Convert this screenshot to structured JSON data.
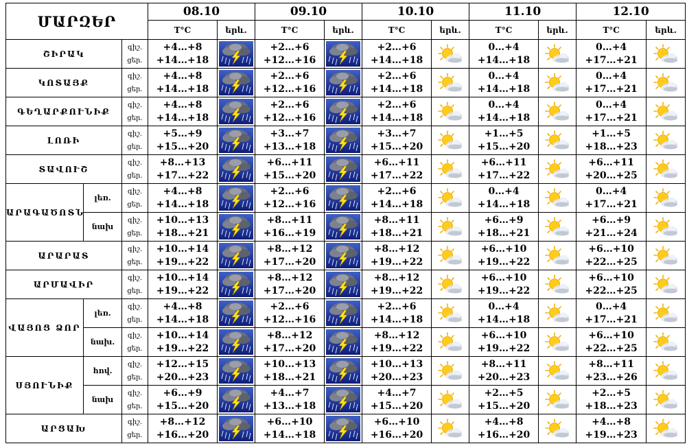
{
  "table": {
    "region_header": "ՄԱՐԶԵՐ",
    "dates": [
      "08.10",
      "09.10",
      "10.10",
      "11.10",
      "12.10"
    ],
    "temp_header": "T°C",
    "sky_header": "երև.",
    "rows": [
      {
        "region": "ՇԻՐԱԿ",
        "sub": "",
        "night_label": "գիշ.",
        "day_label": "ցեր.",
        "days": [
          {
            "night": "+4…+8",
            "day": "+14…+18",
            "icon": "storm-icon"
          },
          {
            "night": "+2…+6",
            "day": "+12…+16",
            "icon": "storm-icon"
          },
          {
            "night": "+2…+6",
            "day": "+14…+18",
            "icon": "partly-cloudy-icon"
          },
          {
            "night": "0…+4",
            "day": "+14…+18",
            "icon": "partly-cloudy-icon"
          },
          {
            "night": "0…+4",
            "day": "+17…+21",
            "icon": "partly-cloudy-icon"
          }
        ]
      },
      {
        "region": "ԿՈՏԱՅՔ",
        "sub": "",
        "night_label": "գիշ.",
        "day_label": "ցեր.",
        "days": [
          {
            "night": "+4…+8",
            "day": "+14…+18",
            "icon": "storm-icon"
          },
          {
            "night": "+2…+6",
            "day": "+12…+16",
            "icon": "storm-icon"
          },
          {
            "night": "+2…+6",
            "day": "+14…+18",
            "icon": "partly-cloudy-icon"
          },
          {
            "night": "0…+4",
            "day": "+14…+18",
            "icon": "partly-cloudy-icon"
          },
          {
            "night": "0…+4",
            "day": "+17…+21",
            "icon": "partly-cloudy-icon"
          }
        ]
      },
      {
        "region": "ԳԵՂԱՐՔՈՒՆԻՔ",
        "sub": "",
        "night_label": "գիշ.",
        "day_label": "ցեր.",
        "days": [
          {
            "night": "+4…+8",
            "day": "+14…+18",
            "icon": "storm-icon"
          },
          {
            "night": "+2…+6",
            "day": "+12…+16",
            "icon": "storm-icon"
          },
          {
            "night": "+2…+6",
            "day": "+14…+18",
            "icon": "partly-cloudy-icon"
          },
          {
            "night": "0…+4",
            "day": "+14…+18",
            "icon": "partly-cloudy-icon"
          },
          {
            "night": "0…+4",
            "day": "+17…+21",
            "icon": "partly-cloudy-icon"
          }
        ]
      },
      {
        "region": "ԼՈՌԻ",
        "sub": "",
        "night_label": "գիշ.",
        "day_label": "ցեր.",
        "days": [
          {
            "night": "+5…+9",
            "day": "+15…+20",
            "icon": "storm-icon"
          },
          {
            "night": "+3…+7",
            "day": "+13…+18",
            "icon": "storm-icon"
          },
          {
            "night": "+3…+7",
            "day": "+15…+20",
            "icon": "partly-cloudy-icon"
          },
          {
            "night": "+1…+5",
            "day": "+15…+20",
            "icon": "partly-cloudy-icon"
          },
          {
            "night": "+1…+5",
            "day": "+18…+23",
            "icon": "partly-cloudy-icon"
          }
        ]
      },
      {
        "region": "ՏԱՎՈՒՇ",
        "sub": "",
        "night_label": "գիշ.",
        "day_label": "ցեր.",
        "days": [
          {
            "night": "+8…+13",
            "day": "+17…+22",
            "icon": "storm-icon"
          },
          {
            "night": "+6…+11",
            "day": "+15…+20",
            "icon": "storm-icon"
          },
          {
            "night": "+6…+11",
            "day": "+17…+22",
            "icon": "partly-cloudy-icon"
          },
          {
            "night": "+6…+11",
            "day": "+17…+22",
            "icon": "partly-cloudy-icon"
          },
          {
            "night": "+6…+11",
            "day": "+20…+25",
            "icon": "partly-cloudy-icon"
          }
        ]
      },
      {
        "region": "ԱՐԱԳԱԾՈՏՆ",
        "sub": "լեռ.",
        "night_label": "գիշ.",
        "day_label": "ցեր.",
        "days": [
          {
            "night": "+4…+8",
            "day": "+14…+18",
            "icon": "storm-icon"
          },
          {
            "night": "+2…+6",
            "day": "+12…+16",
            "icon": "storm-icon"
          },
          {
            "night": "+2…+6",
            "day": "+14…+18",
            "icon": "partly-cloudy-icon"
          },
          {
            "night": "0…+4",
            "day": "+14…+18",
            "icon": "partly-cloudy-icon"
          },
          {
            "night": "0…+4",
            "day": "+17…+21",
            "icon": "partly-cloudy-icon"
          }
        ]
      },
      {
        "region": "",
        "sub": "նախ",
        "night_label": "գիշ.",
        "day_label": "ցեր.",
        "days": [
          {
            "night": "+10…+13",
            "day": "+18…+21",
            "icon": "storm-icon"
          },
          {
            "night": "+8…+11",
            "day": "+16…+19",
            "icon": "storm-icon"
          },
          {
            "night": "+8…+11",
            "day": "+18…+21",
            "icon": "partly-cloudy-icon"
          },
          {
            "night": "+6…+9",
            "day": "+18…+21",
            "icon": "partly-cloudy-icon"
          },
          {
            "night": "+6…+9",
            "day": "+21…+24",
            "icon": "partly-cloudy-icon"
          }
        ]
      },
      {
        "region": "ԱՐԱՐԱՏ",
        "sub": "",
        "night_label": "գիշ.",
        "day_label": "ցեր.",
        "days": [
          {
            "night": "+10…+14",
            "day": "+19…+22",
            "icon": "storm-icon"
          },
          {
            "night": "+8…+12",
            "day": "+17…+20",
            "icon": "storm-icon"
          },
          {
            "night": "+8…+12",
            "day": "+19…+22",
            "icon": "partly-cloudy-icon"
          },
          {
            "night": "+6…+10",
            "day": "+19…+22",
            "icon": "partly-cloudy-icon"
          },
          {
            "night": "+6…+10",
            "day": "+22…+25",
            "icon": "partly-cloudy-icon"
          }
        ]
      },
      {
        "region": "ԱՐՄԱՎԻՐ",
        "sub": "",
        "night_label": "գիշ.",
        "day_label": "ցեր.",
        "days": [
          {
            "night": "+10…+14",
            "day": "+19…+22",
            "icon": "storm-icon"
          },
          {
            "night": "+8…+12",
            "day": "+17…+20",
            "icon": "storm-icon"
          },
          {
            "night": "+8…+12",
            "day": "+19…+22",
            "icon": "partly-cloudy-icon"
          },
          {
            "night": "+6…+10",
            "day": "+19…+22",
            "icon": "partly-cloudy-icon"
          },
          {
            "night": "+6…+10",
            "day": "+22…+25",
            "icon": "partly-cloudy-icon"
          }
        ]
      },
      {
        "region": "ՎԱՅՈՑ ՁՈՐ",
        "sub": "լեռ.",
        "night_label": "գիշ.",
        "day_label": "ցեր.",
        "days": [
          {
            "night": "+4…+8",
            "day": "+14…+18",
            "icon": "storm-icon"
          },
          {
            "night": "+2…+6",
            "day": "+12…+16",
            "icon": "storm-icon"
          },
          {
            "night": "+2…+6",
            "day": "+14…+18",
            "icon": "partly-cloudy-icon"
          },
          {
            "night": "0…+4",
            "day": "+14…+18",
            "icon": "partly-cloudy-icon"
          },
          {
            "night": "0…+4",
            "day": "+17…+21",
            "icon": "partly-cloudy-icon"
          }
        ]
      },
      {
        "region": "",
        "sub": "նախ.",
        "night_label": "գիշ.",
        "day_label": "ցեր.",
        "days": [
          {
            "night": "+10…+14",
            "day": "+19…+22",
            "icon": "storm-icon"
          },
          {
            "night": "+8…+12",
            "day": "+17…+20",
            "icon": "storm-icon"
          },
          {
            "night": "+8…+12",
            "day": "+19…+22",
            "icon": "partly-cloudy-icon"
          },
          {
            "night": "+6…+10",
            "day": "+19…+22",
            "icon": "partly-cloudy-icon"
          },
          {
            "night": "+6…+10",
            "day": "+22…+25",
            "icon": "partly-cloudy-icon"
          }
        ]
      },
      {
        "region": "ՍՅՈՒՆԻՔ",
        "sub": "հով.",
        "night_label": "գիշ.",
        "day_label": "ցեր.",
        "days": [
          {
            "night": "+12…+15",
            "day": "+20…+23",
            "icon": "storm-icon"
          },
          {
            "night": "+10…+13",
            "day": "+18…+21",
            "icon": "storm-icon"
          },
          {
            "night": "+10…+13",
            "day": "+20…+23",
            "icon": "partly-cloudy-icon"
          },
          {
            "night": "+8…+11",
            "day": "+20…+23",
            "icon": "partly-cloudy-icon"
          },
          {
            "night": "+8…+11",
            "day": "+23…+26",
            "icon": "partly-cloudy-icon"
          }
        ]
      },
      {
        "region": "",
        "sub": "նախ",
        "night_label": "գիշ.",
        "day_label": "ցեր.",
        "days": [
          {
            "night": "+6…+9",
            "day": "+15…+20",
            "icon": "storm-icon"
          },
          {
            "night": "+4…+7",
            "day": "+13…+18",
            "icon": "storm-icon"
          },
          {
            "night": "+4…+7",
            "day": "+15…+20",
            "icon": "partly-cloudy-icon"
          },
          {
            "night": "+2…+5",
            "day": "+15…+20",
            "icon": "partly-cloudy-icon"
          },
          {
            "night": "+2…+5",
            "day": "+18…+23",
            "icon": "partly-cloudy-icon"
          }
        ]
      },
      {
        "region": "ԱՐՑԱԽ",
        "sub": "",
        "night_label": "գիշ.",
        "day_label": "ցեր.",
        "days": [
          {
            "night": "+8…+12",
            "day": "+16…+20",
            "icon": "storm-icon"
          },
          {
            "night": "+6…+10",
            "day": "+14…+18",
            "icon": "storm-icon"
          },
          {
            "night": "+6…+10",
            "day": "+16…+20",
            "icon": "partly-cloudy-icon"
          },
          {
            "night": "+4…+8",
            "day": "+16…+20",
            "icon": "partly-cloudy-icon"
          },
          {
            "night": "+4…+8",
            "day": "+19…+23",
            "icon": "partly-cloudy-icon"
          }
        ]
      }
    ]
  }
}
